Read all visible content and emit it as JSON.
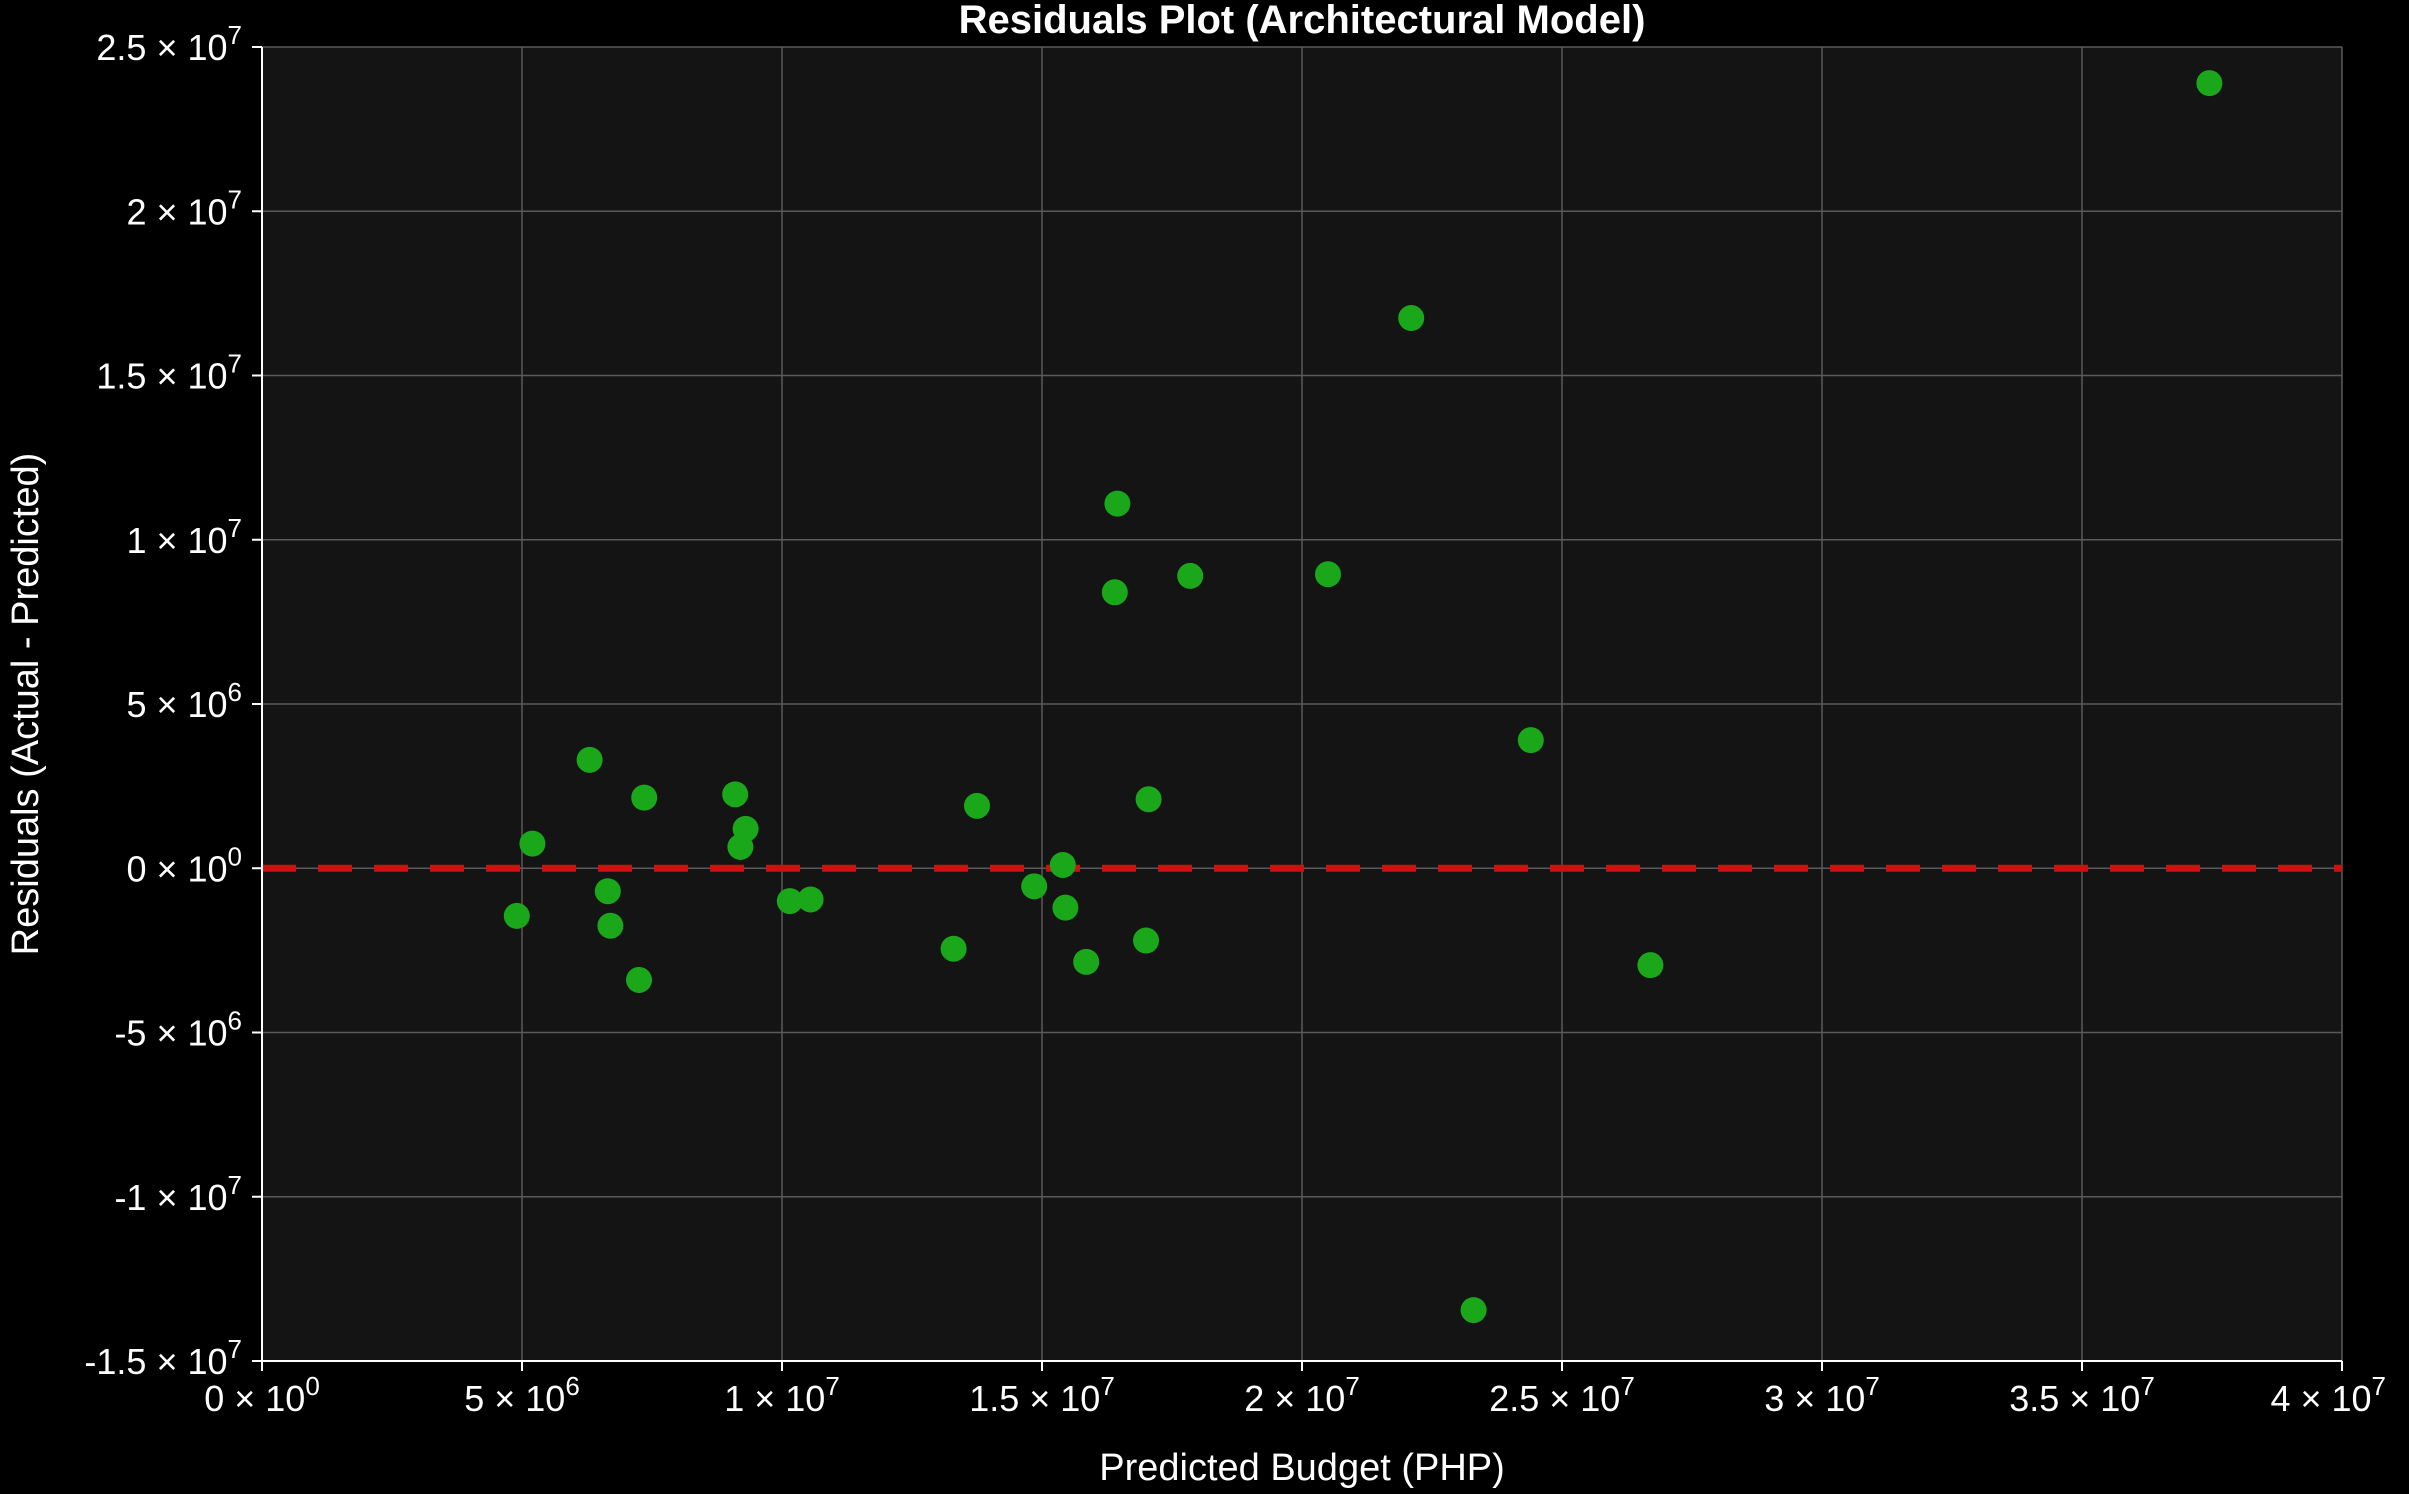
{
  "chart_data": {
    "type": "scatter",
    "title": "Residuals Plot (Architectural Model)",
    "xlabel": "Predicted Budget (PHP)",
    "ylabel": "Residuals (Actual - Predicted)",
    "xlim": [
      0,
      40000000
    ],
    "ylim": [
      -15000000,
      25000000
    ],
    "x_ticks": [
      {
        "value": 0,
        "mantissa": "0",
        "exp": "0"
      },
      {
        "value": 5000000,
        "mantissa": "5",
        "exp": "6"
      },
      {
        "value": 10000000,
        "mantissa": "1",
        "exp": "7"
      },
      {
        "value": 15000000,
        "mantissa": "1.5",
        "exp": "7"
      },
      {
        "value": 20000000,
        "mantissa": "2",
        "exp": "7"
      },
      {
        "value": 25000000,
        "mantissa": "2.5",
        "exp": "7"
      },
      {
        "value": 30000000,
        "mantissa": "3",
        "exp": "7"
      },
      {
        "value": 35000000,
        "mantissa": "3.5",
        "exp": "7"
      },
      {
        "value": 40000000,
        "mantissa": "4",
        "exp": "7"
      }
    ],
    "y_ticks": [
      {
        "value": 25000000,
        "mantissa": "2.5",
        "exp": "7"
      },
      {
        "value": 20000000,
        "mantissa": "2",
        "exp": "7"
      },
      {
        "value": 15000000,
        "mantissa": "1.5",
        "exp": "7"
      },
      {
        "value": 10000000,
        "mantissa": "1",
        "exp": "7"
      },
      {
        "value": 5000000,
        "mantissa": "5",
        "exp": "6"
      },
      {
        "value": 0,
        "mantissa": "0",
        "exp": "0"
      },
      {
        "value": -5000000,
        "mantissa": "-5",
        "exp": "6"
      },
      {
        "value": -10000000,
        "mantissa": "-1",
        "exp": "7"
      },
      {
        "value": -15000000,
        "mantissa": "-1.5",
        "exp": "7"
      }
    ],
    "grid": true,
    "reference_line": {
      "y": 0,
      "style": "dashed",
      "color": "#cc1111"
    },
    "series": [
      {
        "color": "#1aa81a",
        "points": [
          {
            "x": 4900000,
            "y": -1450000
          },
          {
            "x": 5200000,
            "y": 750000
          },
          {
            "x": 6300000,
            "y": 3300000
          },
          {
            "x": 6650000,
            "y": -700000
          },
          {
            "x": 6700000,
            "y": -1750000
          },
          {
            "x": 7250000,
            "y": -3400000
          },
          {
            "x": 7350000,
            "y": 2150000
          },
          {
            "x": 9100000,
            "y": 2250000
          },
          {
            "x": 9200000,
            "y": 650000
          },
          {
            "x": 9300000,
            "y": 1200000
          },
          {
            "x": 10150000,
            "y": -1000000
          },
          {
            "x": 10550000,
            "y": -950000
          },
          {
            "x": 13300000,
            "y": -2450000
          },
          {
            "x": 13750000,
            "y": 1900000
          },
          {
            "x": 14850000,
            "y": -550000
          },
          {
            "x": 15400000,
            "y": 100000
          },
          {
            "x": 15450000,
            "y": -1200000
          },
          {
            "x": 15850000,
            "y": -2850000
          },
          {
            "x": 16400000,
            "y": 8400000
          },
          {
            "x": 16450000,
            "y": 11100000
          },
          {
            "x": 17000000,
            "y": -2200000
          },
          {
            "x": 17050000,
            "y": 2100000
          },
          {
            "x": 17850000,
            "y": 8900000
          },
          {
            "x": 20500000,
            "y": 8950000
          },
          {
            "x": 22100000,
            "y": 16750000
          },
          {
            "x": 23300000,
            "y": -13450000
          },
          {
            "x": 24400000,
            "y": 3900000
          },
          {
            "x": 26700000,
            "y": -2950000
          },
          {
            "x": 37450000,
            "y": 23900000
          }
        ]
      }
    ]
  }
}
